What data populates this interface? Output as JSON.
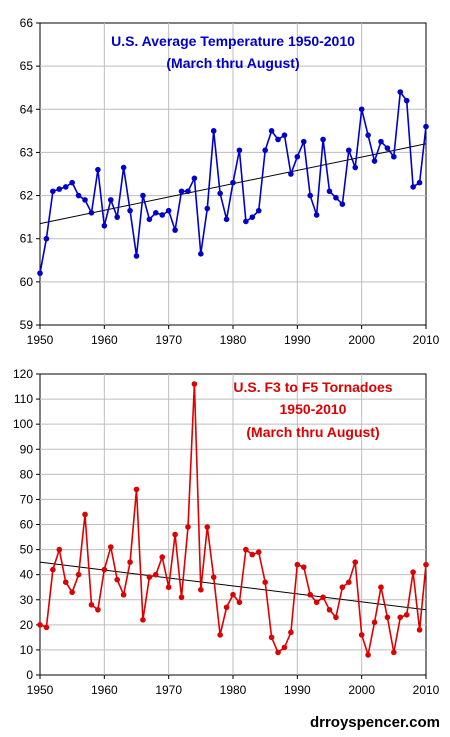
{
  "chart_data": [
    {
      "type": "line",
      "title_lines": [
        "U.S. Average Temperature 1950-2010",
        "(March thru August)"
      ],
      "color": "#0000cc",
      "trend_color": "#000000",
      "xlim": [
        1950,
        2010
      ],
      "ylim": [
        59,
        66
      ],
      "x_ticks": [
        1950,
        1960,
        1970,
        1980,
        1990,
        2000,
        2010
      ],
      "y_ticks": [
        59,
        60,
        61,
        62,
        63,
        64,
        65,
        66
      ],
      "grid": true,
      "trend": {
        "x": [
          1950,
          2010
        ],
        "y": [
          61.35,
          63.2
        ]
      },
      "series": [
        {
          "x": [
            1950,
            1951,
            1952,
            1953,
            1954,
            1955,
            1956,
            1957,
            1958,
            1959,
            1960,
            1961,
            1962,
            1963,
            1964,
            1965,
            1966,
            1967,
            1968,
            1969,
            1970,
            1971,
            1972,
            1973,
            1974,
            1975,
            1976,
            1977,
            1978,
            1979,
            1980,
            1981,
            1982,
            1983,
            1984,
            1985,
            1986,
            1987,
            1988,
            1989,
            1990,
            1991,
            1992,
            1993,
            1994,
            1995,
            1996,
            1997,
            1998,
            1999,
            2000,
            2001,
            2002,
            2003,
            2004,
            2005,
            2006,
            2007,
            2008,
            2009,
            2010
          ],
          "values": [
            60.2,
            61.0,
            62.1,
            62.15,
            62.2,
            62.3,
            62.0,
            61.9,
            61.6,
            62.6,
            61.3,
            61.9,
            61.5,
            62.65,
            61.65,
            60.6,
            62.0,
            61.45,
            61.6,
            61.55,
            61.65,
            61.2,
            62.1,
            62.1,
            62.4,
            60.65,
            61.7,
            63.5,
            62.05,
            61.45,
            62.3,
            63.05,
            61.4,
            61.5,
            61.65,
            63.05,
            63.5,
            63.3,
            63.4,
            62.5,
            62.9,
            63.25,
            62.0,
            61.55,
            63.3,
            62.1,
            61.95,
            61.8,
            63.05,
            62.65,
            64.0,
            63.4,
            62.8,
            63.25,
            63.1,
            62.9,
            64.4,
            64.2,
            62.2,
            62.3,
            63.6
          ]
        }
      ]
    },
    {
      "type": "line",
      "title_lines": [
        "U.S. F3 to F5 Tornadoes",
        "1950-2010",
        "(March thru August)"
      ],
      "color": "#dd0000",
      "trend_color": "#000000",
      "xlim": [
        1950,
        2010
      ],
      "ylim": [
        0,
        120
      ],
      "x_ticks": [
        1950,
        1960,
        1970,
        1980,
        1990,
        2000,
        2010
      ],
      "y_ticks": [
        0,
        10,
        20,
        30,
        40,
        50,
        60,
        70,
        80,
        90,
        100,
        110,
        120
      ],
      "grid": true,
      "trend": {
        "x": [
          1950,
          2010
        ],
        "y": [
          45,
          26
        ]
      },
      "series": [
        {
          "x": [
            1950,
            1951,
            1952,
            1953,
            1954,
            1955,
            1956,
            1957,
            1958,
            1959,
            1960,
            1961,
            1962,
            1963,
            1964,
            1965,
            1966,
            1967,
            1968,
            1969,
            1970,
            1971,
            1972,
            1973,
            1974,
            1975,
            1976,
            1977,
            1978,
            1979,
            1980,
            1981,
            1982,
            1983,
            1984,
            1985,
            1986,
            1987,
            1988,
            1989,
            1990,
            1991,
            1992,
            1993,
            1994,
            1995,
            1996,
            1997,
            1998,
            1999,
            2000,
            2001,
            2002,
            2003,
            2004,
            2005,
            2006,
            2007,
            2008,
            2009,
            2010
          ],
          "values": [
            20,
            19,
            42,
            50,
            37,
            33,
            40,
            64,
            28,
            26,
            42,
            51,
            38,
            32,
            45,
            74,
            22,
            39,
            40,
            47,
            35,
            56,
            31,
            59,
            116,
            34,
            59,
            39,
            16,
            27,
            32,
            29,
            50,
            48,
            49,
            37,
            15,
            9,
            11,
            17,
            44,
            43,
            32,
            29,
            31,
            26,
            23,
            35,
            37,
            45,
            16,
            8,
            21,
            35,
            23,
            9,
            23,
            24,
            41,
            18,
            44
          ]
        }
      ]
    }
  ],
  "credit": "drroyspencer.com"
}
